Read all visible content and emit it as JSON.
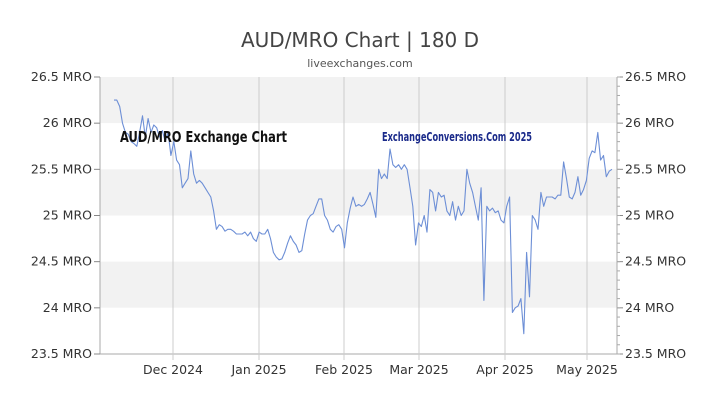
{
  "chart_data": {
    "type": "line",
    "title": "AUD/MRO Chart | 180 D",
    "subtitle": "liveexchanges.com",
    "annotations": [
      "AUD/MRO Exchange Chart",
      "ExchangeConversions.Com 2025"
    ],
    "xlabel": "",
    "ylabel": "",
    "x_tick_labels": [
      "Dec 2024",
      "Jan 2025",
      "Feb 2025",
      "Mar 2025",
      "Apr 2025",
      "May 2025"
    ],
    "y_tick_labels": [
      "26.5 MRO",
      "26 MRO",
      "25.5 MRO",
      "25 MRO",
      "24.5 MRO",
      "24 MRO",
      "23.5 MRO"
    ],
    "y_ticks": [
      26.5,
      26,
      25.5,
      25,
      24.5,
      24,
      23.5
    ],
    "ylim": [
      23.5,
      26.5
    ],
    "grid": "horizontal bands",
    "legend": "none",
    "line_color": "#6d8fd6",
    "series": [
      {
        "values": [
          26.25,
          26.25,
          26.18,
          26.0,
          25.9,
          25.88,
          25.8,
          25.78,
          25.75,
          25.9,
          26.08,
          25.85,
          26.05,
          25.9,
          25.98,
          25.95,
          25.85,
          25.92,
          25.8,
          25.9,
          25.65,
          25.8,
          25.6,
          25.55,
          25.3,
          25.35,
          25.4,
          25.7,
          25.45,
          25.35,
          25.38,
          25.35,
          25.3,
          25.25,
          25.2,
          25.05,
          24.85,
          24.9,
          24.88,
          24.83,
          24.85,
          24.85,
          24.83,
          24.8,
          24.8,
          24.8,
          24.82,
          24.78,
          24.82,
          24.75,
          24.72,
          24.82,
          24.8,
          24.8,
          24.85,
          24.75,
          24.6,
          24.55,
          24.52,
          24.53,
          24.6,
          24.7,
          24.78,
          24.72,
          24.68,
          24.6,
          24.62,
          24.8,
          24.95,
          25.0,
          25.02,
          25.1,
          25.18,
          25.18,
          25.0,
          24.95,
          24.85,
          24.82,
          24.88,
          24.9,
          24.85,
          24.65,
          24.92,
          25.08,
          25.2,
          25.1,
          25.12,
          25.1,
          25.12,
          25.18,
          25.25,
          25.12,
          24.98,
          25.5,
          25.4,
          25.45,
          25.4,
          25.72,
          25.55,
          25.52,
          25.55,
          25.5,
          25.55,
          25.5,
          25.3,
          25.1,
          24.68,
          24.92,
          24.88,
          25.0,
          24.82,
          25.28,
          25.25,
          25.05,
          25.25,
          25.2,
          25.22,
          25.05,
          25.0,
          25.15,
          24.95,
          25.1,
          25.0,
          25.05,
          25.5,
          25.35,
          25.25,
          25.1,
          24.95,
          25.3,
          24.08,
          25.1,
          25.05,
          25.08,
          25.03,
          25.05,
          24.95,
          24.92,
          25.1,
          25.2,
          23.95,
          24.0,
          24.02,
          24.1,
          23.72,
          24.6,
          24.12,
          25.0,
          24.95,
          24.85,
          25.25,
          25.1,
          25.2,
          25.2,
          25.2,
          25.18,
          25.22,
          25.22,
          25.58,
          25.4,
          25.2,
          25.18,
          25.25,
          25.42,
          25.22,
          25.28,
          25.38,
          25.62,
          25.7,
          25.68,
          25.9,
          25.6,
          25.65,
          25.42,
          25.48,
          25.5
        ]
      }
    ]
  }
}
